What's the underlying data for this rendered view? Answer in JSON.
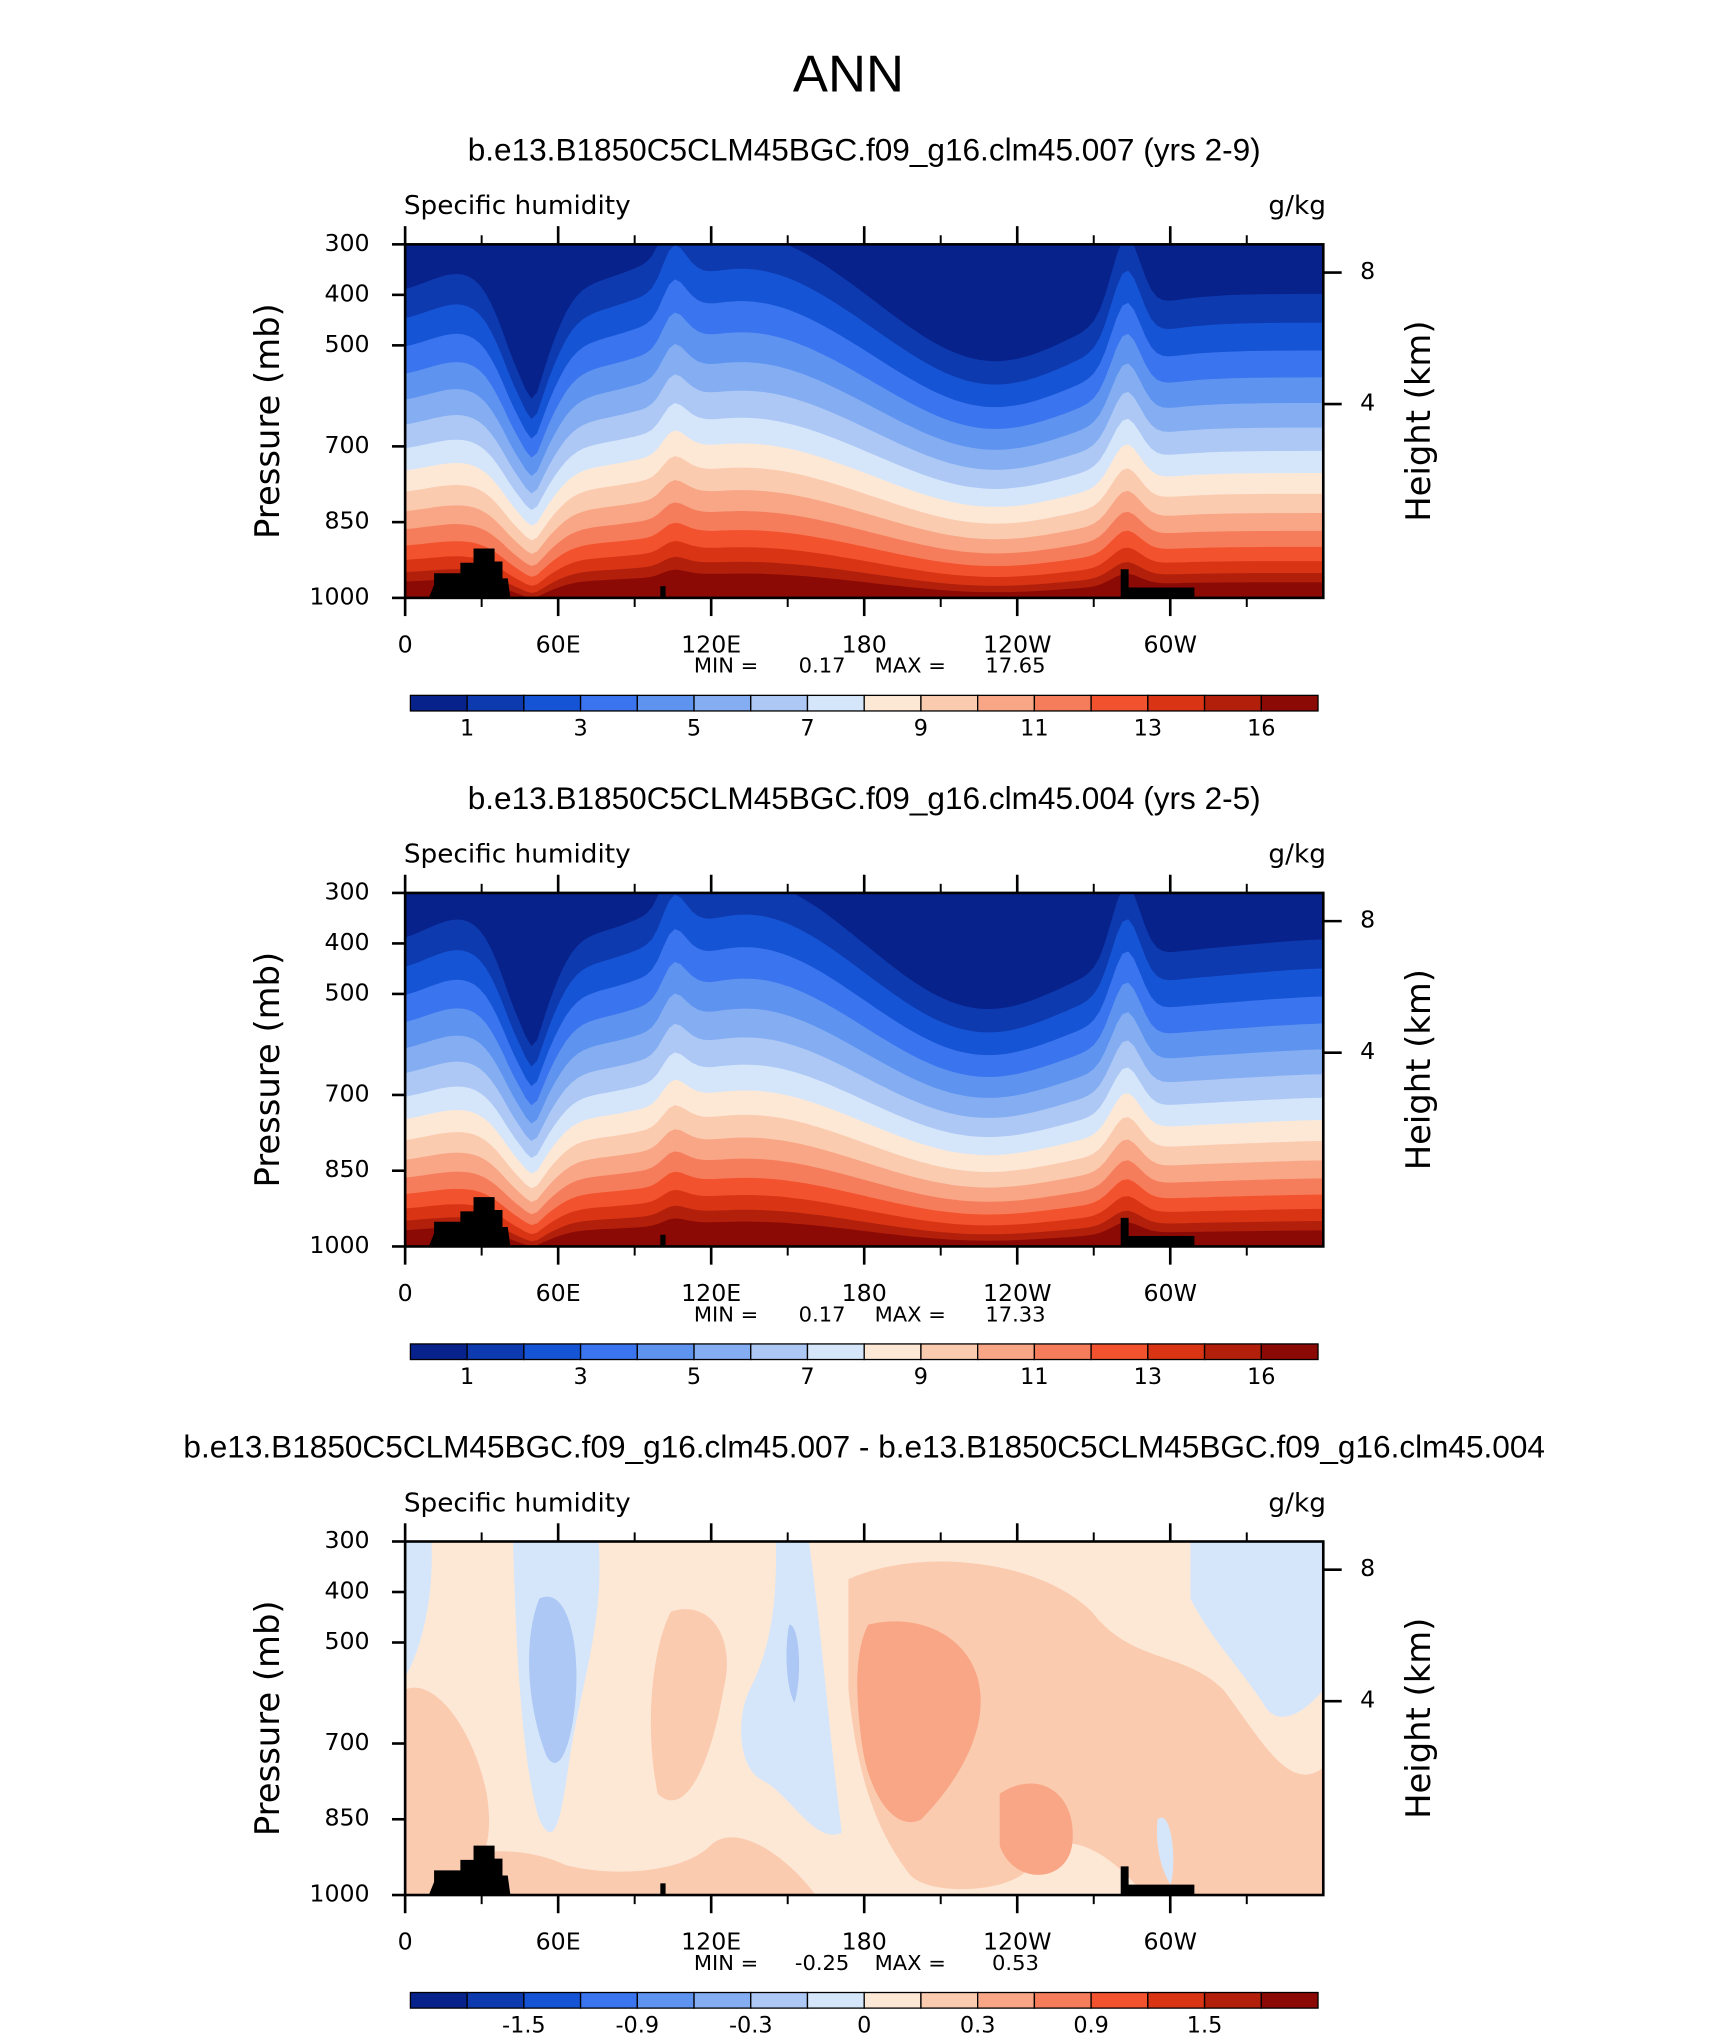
{
  "title": "ANN",
  "panels": [
    {
      "title": "b.e13.B1850C5CLM45BGC.f09_g16.clm45.007 (yrs 2-9)",
      "left_label": "Specific humidity",
      "right_label": "g/kg",
      "y_label": "Pressure (mb)",
      "y2_label": "Height (km)",
      "ylim": [
        1000,
        300
      ],
      "yticks": [
        300,
        400,
        500,
        700,
        850,
        1000
      ],
      "y2lim": [
        0.11,
        9.16
      ],
      "y2ticks": [
        8,
        4
      ],
      "xlim": [
        0,
        360
      ],
      "xticks": [
        0,
        {
          "value": 60,
          "label": "60E"
        },
        {
          "value": 120,
          "label": "120E"
        },
        180,
        {
          "value": 240,
          "label": "120W"
        },
        {
          "value": 300,
          "label": "60W"
        }
      ],
      "xminor": [
        30,
        90,
        150,
        210,
        270,
        330
      ],
      "min_label": "MIN =",
      "min": 0.17,
      "max_label": "MAX =",
      "max": 17.65,
      "colorbar": {
        "colors": [
          "#08228c",
          "#0d3aaf",
          "#1654d6",
          "#3a74ee",
          "#5e93f0",
          "#85aef2",
          "#adc8f5",
          "#d5e6fb",
          "#fde8d6",
          "#fbcbb0",
          "#f8a686",
          "#f67d5b",
          "#f2522d",
          "#d93515",
          "#b2200c",
          "#8c0a05"
        ],
        "ticks": [
          1,
          3,
          5,
          7,
          9,
          11,
          13,
          16
        ]
      }
    },
    {
      "title": "b.e13.B1850C5CLM45BGC.f09_g16.clm45.004 (yrs 2-5)",
      "left_label": "Specific humidity",
      "right_label": "g/kg",
      "y_label": "Pressure (mb)",
      "y2_label": "Height (km)",
      "ylim": [
        1000,
        300
      ],
      "yticks": [
        300,
        400,
        500,
        700,
        850,
        1000
      ],
      "y2lim": [
        0.11,
        9.16
      ],
      "y2ticks": [
        8,
        4
      ],
      "xlim": [
        0,
        360
      ],
      "xticks": [
        0,
        {
          "value": 60,
          "label": "60E"
        },
        {
          "value": 120,
          "label": "120E"
        },
        180,
        {
          "value": 240,
          "label": "120W"
        },
        {
          "value": 300,
          "label": "60W"
        }
      ],
      "xminor": [
        30,
        90,
        150,
        210,
        270,
        330
      ],
      "min_label": "MIN =",
      "min": 0.17,
      "max_label": "MAX =",
      "max": 17.33,
      "colorbar": {
        "colors": [
          "#08228c",
          "#0d3aaf",
          "#1654d6",
          "#3a74ee",
          "#5e93f0",
          "#85aef2",
          "#adc8f5",
          "#d5e6fb",
          "#fde8d6",
          "#fbcbb0",
          "#f8a686",
          "#f67d5b",
          "#f2522d",
          "#d93515",
          "#b2200c",
          "#8c0a05"
        ],
        "ticks": [
          1,
          3,
          5,
          7,
          9,
          11,
          13,
          16
        ]
      }
    },
    {
      "title": "b.e13.B1850C5CLM45BGC.f09_g16.clm45.007 - b.e13.B1850C5CLM45BGC.f09_g16.clm45.004",
      "left_label": "Specific humidity",
      "right_label": "g/kg",
      "y_label": "Pressure (mb)",
      "y2_label": "Height (km)",
      "ylim": [
        1000,
        300
      ],
      "yticks": [
        300,
        400,
        500,
        700,
        850,
        1000
      ],
      "y2lim": [
        0.11,
        9.16
      ],
      "y2ticks": [
        8,
        4
      ],
      "xlim": [
        0,
        360
      ],
      "xticks": [
        0,
        {
          "value": 60,
          "label": "60E"
        },
        {
          "value": 120,
          "label": "120E"
        },
        180,
        {
          "value": 240,
          "label": "120W"
        },
        {
          "value": 300,
          "label": "60W"
        }
      ],
      "xminor": [
        30,
        90,
        150,
        210,
        270,
        330
      ],
      "min_label": "MIN =",
      "min": -0.25,
      "max_label": "MAX =",
      "max": 0.53,
      "colorbar": {
        "colors": [
          "#08228c",
          "#0d3aaf",
          "#1654d6",
          "#3a74ee",
          "#5e93f0",
          "#85aef2",
          "#adc8f5",
          "#d5e6fb",
          "#fde8d6",
          "#fbcbb0",
          "#f8a686",
          "#f67d5b",
          "#f2522d",
          "#d93515",
          "#b2200c",
          "#8c0a05"
        ],
        "ticks": [
          -1.5,
          -0.9,
          -0.3,
          0,
          0.3,
          0.9,
          1.5
        ]
      }
    }
  ]
}
